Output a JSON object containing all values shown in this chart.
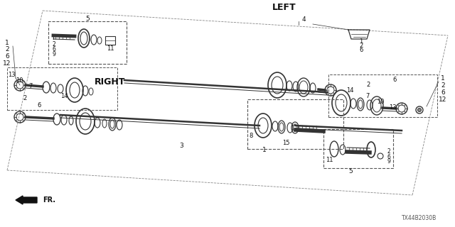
{
  "bg_color": "#ffffff",
  "diagram_code": "TX44B2030B",
  "left_label": "LEFT",
  "right_label": "RIGHT",
  "fr_label": "FR.",
  "line_color": "#333333",
  "dark_color": "#111111"
}
